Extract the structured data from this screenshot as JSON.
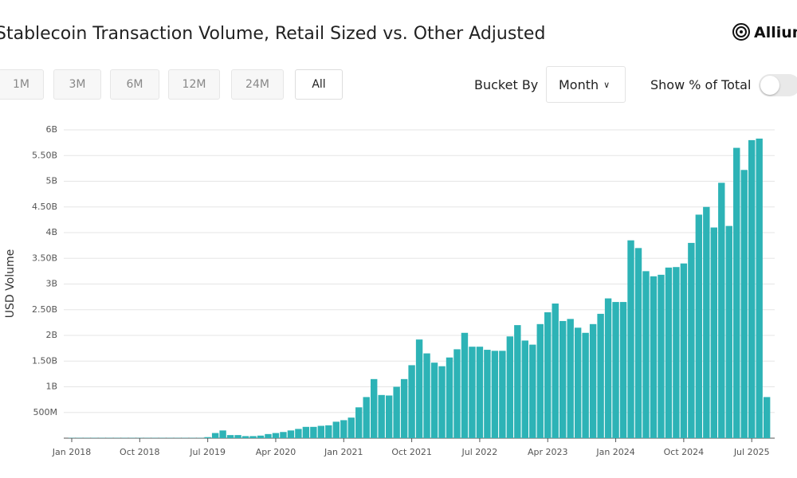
{
  "header": {
    "title": "Stablecoin Transaction Volume, Retail Sized vs. Other Adjusted",
    "brand": "Allium"
  },
  "controls": {
    "ranges": [
      "1M",
      "3M",
      "6M",
      "12M",
      "24M",
      "All"
    ],
    "bucket_label": "Bucket By",
    "bucket_value": "Month",
    "toggle_label": "Show % of Total"
  },
  "chart_data": {
    "type": "bar",
    "y_label": "USD Volume",
    "color": "#2db3b6",
    "grid": true,
    "categories": [
      "Jan 2018",
      null,
      null,
      null,
      null,
      null,
      null,
      null,
      null,
      "Oct 2018",
      null,
      null,
      null,
      null,
      null,
      null,
      null,
      null,
      "Jul 2019",
      null,
      null,
      null,
      null,
      null,
      null,
      null,
      null,
      "Apr 2020",
      null,
      null,
      null,
      null,
      null,
      null,
      null,
      null,
      "Jan 2021",
      null,
      null,
      null,
      null,
      null,
      null,
      null,
      null,
      "Oct 2021",
      null,
      null,
      null,
      null,
      null,
      null,
      null,
      null,
      "Jul 2022",
      null,
      null,
      null,
      null,
      null,
      null,
      null,
      null,
      "Apr 2023",
      null,
      null,
      null,
      null,
      null,
      null,
      null,
      null,
      "Jan 2024",
      null,
      null,
      null,
      null,
      null,
      null,
      null,
      null,
      "Oct 2024",
      null,
      null,
      null,
      null,
      null,
      null,
      null,
      null,
      "Jul 2025",
      null,
      null
    ],
    "values": [
      5000000.0,
      5000000.0,
      5000000.0,
      5000000.0,
      5000000.0,
      5000000.0,
      5000000.0,
      5000000.0,
      5000000.0,
      5000000.0,
      5000000.0,
      5000000.0,
      5000000.0,
      5000000.0,
      5000000.0,
      5000000.0,
      5000000.0,
      5000000.0,
      20000000.0,
      100000000.0,
      150000000.0,
      60000000.0,
      60000000.0,
      40000000.0,
      40000000.0,
      50000000.0,
      80000000.0,
      100000000.0,
      120000000.0,
      150000000.0,
      180000000.0,
      220000000.0,
      220000000.0,
      240000000.0,
      250000000.0,
      320000000.0,
      350000000.0,
      400000000.0,
      600000000.0,
      800000000.0,
      1150000000.0,
      840000000.0,
      830000000.0,
      1000000000.0,
      1150000000.0,
      1420000000.0,
      1920000000.0,
      1650000000.0,
      1470000000.0,
      1400000000.0,
      1570000000.0,
      1730000000.0,
      2050000000.0,
      1780000000.0,
      1780000000.0,
      1720000000.0,
      1700000000.0,
      1700000000.0,
      1980000000.0,
      2200000000.0,
      1900000000.0,
      1820000000.0,
      2220000000.0,
      2450000000.0,
      2620000000.0,
      2280000000.0,
      2320000000.0,
      2150000000.0,
      2050000000.0,
      2220000000.0,
      2420000000.0,
      2720000000.0,
      2650000000.0,
      2650000000.0,
      3850000000.0,
      3700000000.0,
      3250000000.0,
      3150000000.0,
      3180000000.0,
      3320000000.0,
      3330000000.0,
      3400000000.0,
      3800000000.0,
      4350000000.0,
      4500000000.0,
      4100000000.0,
      4970000000.0,
      4130000000.0,
      5650000000.0,
      5220000000.0,
      5800000000.0,
      5830000000.0,
      800000000.0
    ],
    "ylim": [
      0,
      6000000000
    ],
    "yticks": [
      {
        "value": 500000000,
        "label": "500M"
      },
      {
        "value": 1000000000,
        "label": "1B"
      },
      {
        "value": 1500000000,
        "label": "1.50B"
      },
      {
        "value": 2000000000,
        "label": "2B"
      },
      {
        "value": 2500000000,
        "label": "2.50B"
      },
      {
        "value": 3000000000,
        "label": "3B"
      },
      {
        "value": 3500000000,
        "label": "3.50B"
      },
      {
        "value": 4000000000,
        "label": "4B"
      },
      {
        "value": 4500000000,
        "label": "4.50B"
      },
      {
        "value": 5000000000,
        "label": "5B"
      },
      {
        "value": 5500000000,
        "label": "5.50B"
      },
      {
        "value": 6000000000,
        "label": "6B"
      }
    ]
  }
}
